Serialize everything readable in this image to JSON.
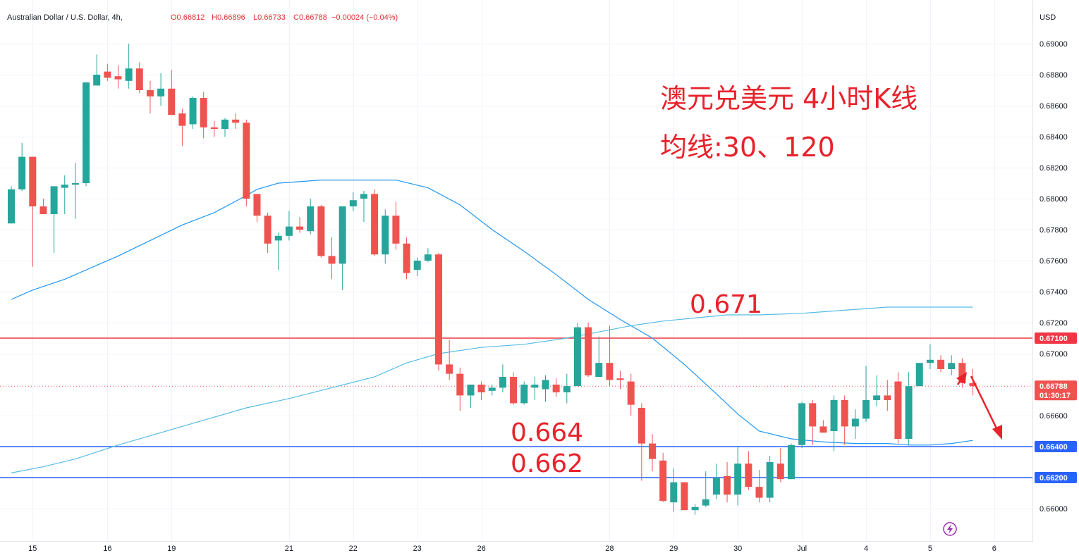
{
  "legend": {
    "symbol": "Australian Dollar / U.S. Dollar, 4h,",
    "open": "O0.66812",
    "high": "H0.66896",
    "low": "L0.66733",
    "close": "C0.66788",
    "change": "−0.00024 (−0.04%)"
  },
  "currency": "USD",
  "annotations": {
    "title_line1": "澳元兑美元 4小时K线",
    "title_line2": "均线:30、120",
    "level_671": "0.671",
    "level_664": "0.664",
    "level_662": "0.662"
  },
  "price_tags": {
    "resistance": "0.67100",
    "last_price": "0.66788",
    "countdown": "01:30:17",
    "support_1": "0.66400",
    "support_2": "0.66200"
  },
  "colors": {
    "up": "#26a69a",
    "down": "#ef5350",
    "ma30": "#2196f3",
    "ma120": "#56bce6",
    "resistance_line": "#f23645",
    "support_line": "#2962ff",
    "annotation": "#e8222b"
  },
  "chart_data": {
    "type": "candlestick",
    "symbol": "AUDUSD",
    "timeframe": "4h",
    "ylim": [
      0.6595,
      0.691
    ],
    "y_ticks": [
      "0.69000",
      "0.68800",
      "0.68600",
      "0.68400",
      "0.68200",
      "0.68000",
      "0.67800",
      "0.67600",
      "0.67400",
      "0.67200",
      "0.67000",
      "0.66800",
      "0.66600",
      "0.66400",
      "0.66200",
      "0.66000"
    ],
    "x_ticks": [
      {
        "label": "15",
        "bar": 2
      },
      {
        "label": "16",
        "bar": 9
      },
      {
        "label": "19",
        "bar": 15
      },
      {
        "label": "21",
        "bar": 26
      },
      {
        "label": "22",
        "bar": 32
      },
      {
        "label": "23",
        "bar": 38
      },
      {
        "label": "26",
        "bar": 44
      },
      {
        "label": "28",
        "bar": 56
      },
      {
        "label": "29",
        "bar": 62
      },
      {
        "label": "30",
        "bar": 68
      },
      {
        "label": "Jul",
        "bar": 74
      },
      {
        "label": "4",
        "bar": 80
      },
      {
        "label": "5",
        "bar": 86
      },
      {
        "label": "6",
        "bar": 92
      }
    ],
    "horizontal_lines": [
      {
        "value": 0.671,
        "label": "0.67100",
        "role": "resistance"
      },
      {
        "value": 0.664,
        "label": "0.66400",
        "role": "support"
      },
      {
        "value": 0.662,
        "label": "0.66200",
        "role": "support"
      }
    ],
    "candles": [
      {
        "o": 0.6784,
        "h": 0.6808,
        "l": 0.6784,
        "c": 0.6806
      },
      {
        "o": 0.6806,
        "h": 0.6836,
        "l": 0.6805,
        "c": 0.6827
      },
      {
        "o": 0.6827,
        "h": 0.6827,
        "l": 0.6756,
        "c": 0.6795
      },
      {
        "o": 0.6795,
        "h": 0.68,
        "l": 0.679,
        "c": 0.679
      },
      {
        "o": 0.679,
        "h": 0.6808,
        "l": 0.6765,
        "c": 0.6808
      },
      {
        "o": 0.6807,
        "h": 0.6815,
        "l": 0.679,
        "c": 0.6809
      },
      {
        "o": 0.6809,
        "h": 0.6823,
        "l": 0.6787,
        "c": 0.681
      },
      {
        "o": 0.681,
        "h": 0.6875,
        "l": 0.6808,
        "c": 0.6875
      },
      {
        "o": 0.6873,
        "h": 0.6893,
        "l": 0.6873,
        "c": 0.688
      },
      {
        "o": 0.6882,
        "h": 0.6887,
        "l": 0.6876,
        "c": 0.6878
      },
      {
        "o": 0.6879,
        "h": 0.6886,
        "l": 0.6871,
        "c": 0.6877
      },
      {
        "o": 0.6876,
        "h": 0.69,
        "l": 0.6871,
        "c": 0.6884
      },
      {
        "o": 0.6884,
        "h": 0.6888,
        "l": 0.6868,
        "c": 0.687
      },
      {
        "o": 0.687,
        "h": 0.6876,
        "l": 0.6855,
        "c": 0.6866
      },
      {
        "o": 0.6866,
        "h": 0.6881,
        "l": 0.686,
        "c": 0.6871
      },
      {
        "o": 0.6871,
        "h": 0.6883,
        "l": 0.6855,
        "c": 0.6854
      },
      {
        "o": 0.6855,
        "h": 0.6858,
        "l": 0.6834,
        "c": 0.6847
      },
      {
        "o": 0.6848,
        "h": 0.6866,
        "l": 0.6845,
        "c": 0.6865
      },
      {
        "o": 0.6865,
        "h": 0.6869,
        "l": 0.6839,
        "c": 0.6846
      },
      {
        "o": 0.6846,
        "h": 0.685,
        "l": 0.684,
        "c": 0.6845
      },
      {
        "o": 0.6845,
        "h": 0.6852,
        "l": 0.684,
        "c": 0.6851
      },
      {
        "o": 0.6851,
        "h": 0.6855,
        "l": 0.6845,
        "c": 0.6849
      },
      {
        "o": 0.6849,
        "h": 0.6851,
        "l": 0.6795,
        "c": 0.68
      },
      {
        "o": 0.6803,
        "h": 0.6803,
        "l": 0.6785,
        "c": 0.6789
      },
      {
        "o": 0.6789,
        "h": 0.6791,
        "l": 0.6765,
        "c": 0.6771
      },
      {
        "o": 0.6773,
        "h": 0.6778,
        "l": 0.6754,
        "c": 0.6776
      },
      {
        "o": 0.6776,
        "h": 0.6792,
        "l": 0.6773,
        "c": 0.6782
      },
      {
        "o": 0.6782,
        "h": 0.6788,
        "l": 0.6778,
        "c": 0.678
      },
      {
        "o": 0.6779,
        "h": 0.68,
        "l": 0.6777,
        "c": 0.6795
      },
      {
        "o": 0.6795,
        "h": 0.6796,
        "l": 0.6762,
        "c": 0.6763
      },
      {
        "o": 0.6763,
        "h": 0.6775,
        "l": 0.6748,
        "c": 0.6758
      },
      {
        "o": 0.6758,
        "h": 0.6795,
        "l": 0.6741,
        "c": 0.6795
      },
      {
        "o": 0.6795,
        "h": 0.6804,
        "l": 0.6792,
        "c": 0.6799
      },
      {
        "o": 0.68,
        "h": 0.6805,
        "l": 0.6785,
        "c": 0.6803
      },
      {
        "o": 0.6803,
        "h": 0.6806,
        "l": 0.6763,
        "c": 0.6764
      },
      {
        "o": 0.6764,
        "h": 0.6793,
        "l": 0.6758,
        "c": 0.6789
      },
      {
        "o": 0.6789,
        "h": 0.6798,
        "l": 0.6767,
        "c": 0.6771
      },
      {
        "o": 0.6771,
        "h": 0.6775,
        "l": 0.6748,
        "c": 0.6752
      },
      {
        "o": 0.6754,
        "h": 0.6762,
        "l": 0.675,
        "c": 0.676
      },
      {
        "o": 0.676,
        "h": 0.6768,
        "l": 0.6759,
        "c": 0.6764
      },
      {
        "o": 0.6764,
        "h": 0.6765,
        "l": 0.6689,
        "c": 0.6693
      },
      {
        "o": 0.6693,
        "h": 0.6709,
        "l": 0.6683,
        "c": 0.6687
      },
      {
        "o": 0.6687,
        "h": 0.6691,
        "l": 0.6663,
        "c": 0.6673
      },
      {
        "o": 0.6673,
        "h": 0.668,
        "l": 0.6665,
        "c": 0.668
      },
      {
        "o": 0.668,
        "h": 0.6682,
        "l": 0.667,
        "c": 0.6675
      },
      {
        "o": 0.6676,
        "h": 0.668,
        "l": 0.6673,
        "c": 0.6678
      },
      {
        "o": 0.6678,
        "h": 0.6693,
        "l": 0.6675,
        "c": 0.6685
      },
      {
        "o": 0.6685,
        "h": 0.6688,
        "l": 0.6667,
        "c": 0.6668
      },
      {
        "o": 0.6668,
        "h": 0.6682,
        "l": 0.6667,
        "c": 0.668
      },
      {
        "o": 0.6678,
        "h": 0.6685,
        "l": 0.667,
        "c": 0.668
      },
      {
        "o": 0.6677,
        "h": 0.6686,
        "l": 0.6669,
        "c": 0.6683
      },
      {
        "o": 0.668,
        "h": 0.6684,
        "l": 0.6672,
        "c": 0.6675
      },
      {
        "o": 0.6675,
        "h": 0.6687,
        "l": 0.6668,
        "c": 0.6679
      },
      {
        "o": 0.6679,
        "h": 0.672,
        "l": 0.6679,
        "c": 0.6717
      },
      {
        "o": 0.6717,
        "h": 0.672,
        "l": 0.6685,
        "c": 0.6686
      },
      {
        "o": 0.6685,
        "h": 0.6711,
        "l": 0.6685,
        "c": 0.6694
      },
      {
        "o": 0.6694,
        "h": 0.6718,
        "l": 0.6679,
        "c": 0.6683
      },
      {
        "o": 0.6684,
        "h": 0.6689,
        "l": 0.6677,
        "c": 0.6683
      },
      {
        "o": 0.6682,
        "h": 0.6687,
        "l": 0.666,
        "c": 0.6667
      },
      {
        "o": 0.6665,
        "h": 0.6668,
        "l": 0.6618,
        "c": 0.6642
      },
      {
        "o": 0.6642,
        "h": 0.6648,
        "l": 0.6624,
        "c": 0.6632
      },
      {
        "o": 0.6631,
        "h": 0.6636,
        "l": 0.6604,
        "c": 0.6605
      },
      {
        "o": 0.6604,
        "h": 0.6626,
        "l": 0.6598,
        "c": 0.6617
      },
      {
        "o": 0.6617,
        "h": 0.6617,
        "l": 0.6599,
        "c": 0.6599
      },
      {
        "o": 0.6599,
        "h": 0.6603,
        "l": 0.6596,
        "c": 0.6601
      },
      {
        "o": 0.6602,
        "h": 0.6624,
        "l": 0.6601,
        "c": 0.6606
      },
      {
        "o": 0.6609,
        "h": 0.6629,
        "l": 0.6606,
        "c": 0.662
      },
      {
        "o": 0.6621,
        "h": 0.663,
        "l": 0.6604,
        "c": 0.6609
      },
      {
        "o": 0.6609,
        "h": 0.664,
        "l": 0.6602,
        "c": 0.6629
      },
      {
        "o": 0.6629,
        "h": 0.6637,
        "l": 0.6612,
        "c": 0.6614
      },
      {
        "o": 0.6614,
        "h": 0.6625,
        "l": 0.6604,
        "c": 0.6607
      },
      {
        "o": 0.6607,
        "h": 0.6634,
        "l": 0.6604,
        "c": 0.663
      },
      {
        "o": 0.6629,
        "h": 0.6639,
        "l": 0.6617,
        "c": 0.6619
      },
      {
        "o": 0.6619,
        "h": 0.6642,
        "l": 0.6619,
        "c": 0.6641
      },
      {
        "o": 0.6641,
        "h": 0.6669,
        "l": 0.6639,
        "c": 0.6668
      },
      {
        "o": 0.6668,
        "h": 0.667,
        "l": 0.6641,
        "c": 0.6653
      },
      {
        "o": 0.6653,
        "h": 0.6657,
        "l": 0.6649,
        "c": 0.6649
      },
      {
        "o": 0.665,
        "h": 0.6673,
        "l": 0.6637,
        "c": 0.667
      },
      {
        "o": 0.667,
        "h": 0.6673,
        "l": 0.6641,
        "c": 0.6653
      },
      {
        "o": 0.6653,
        "h": 0.6664,
        "l": 0.6645,
        "c": 0.6658
      },
      {
        "o": 0.6658,
        "h": 0.6692,
        "l": 0.6656,
        "c": 0.667
      },
      {
        "o": 0.667,
        "h": 0.6686,
        "l": 0.6666,
        "c": 0.6673
      },
      {
        "o": 0.6673,
        "h": 0.6683,
        "l": 0.6663,
        "c": 0.667
      },
      {
        "o": 0.6682,
        "h": 0.6688,
        "l": 0.6642,
        "c": 0.6645
      },
      {
        "o": 0.6645,
        "h": 0.6688,
        "l": 0.6641,
        "c": 0.6679
      },
      {
        "o": 0.6679,
        "h": 0.6694,
        "l": 0.6679,
        "c": 0.6694
      },
      {
        "o": 0.6694,
        "h": 0.6706,
        "l": 0.669,
        "c": 0.6696
      },
      {
        "o": 0.6696,
        "h": 0.6699,
        "l": 0.6688,
        "c": 0.669
      },
      {
        "o": 0.669,
        "h": 0.6699,
        "l": 0.6686,
        "c": 0.6694
      },
      {
        "o": 0.6694,
        "h": 0.6697,
        "l": 0.6678,
        "c": 0.6681
      },
      {
        "o": 0.6681,
        "h": 0.669,
        "l": 0.6673,
        "c": 0.6679
      }
    ],
    "moving_averages": [
      {
        "name": "MA30",
        "type": "SMA",
        "period": 30,
        "points": [
          [
            0,
            0.6735
          ],
          [
            2,
            0.6741
          ],
          [
            5,
            0.6748
          ],
          [
            8,
            0.6757
          ],
          [
            10,
            0.6763
          ],
          [
            13,
            0.6773
          ],
          [
            16,
            0.6783
          ],
          [
            19,
            0.6791
          ],
          [
            22,
            0.6802
          ],
          [
            23,
            0.6806
          ],
          [
            25,
            0.681
          ],
          [
            29,
            0.6812
          ],
          [
            32,
            0.6812
          ],
          [
            36,
            0.6812
          ],
          [
            39,
            0.6807
          ],
          [
            42,
            0.6796
          ],
          [
            45,
            0.678
          ],
          [
            48,
            0.6766
          ],
          [
            51,
            0.6751
          ],
          [
            54,
            0.6735
          ],
          [
            57,
            0.6722
          ],
          [
            60,
            0.671
          ],
          [
            63,
            0.6693
          ],
          [
            66,
            0.6674
          ],
          [
            68,
            0.6661
          ],
          [
            70,
            0.665
          ],
          [
            73,
            0.6645
          ],
          [
            76,
            0.6643
          ],
          [
            79,
            0.6642
          ],
          [
            82,
            0.6642
          ],
          [
            84,
            0.6641
          ],
          [
            86,
            0.6641
          ],
          [
            88,
            0.6642
          ],
          [
            90,
            0.6644
          ]
        ]
      },
      {
        "name": "MA120",
        "type": "SMA",
        "period": 120,
        "points": [
          [
            0,
            0.6623
          ],
          [
            3,
            0.6627
          ],
          [
            6,
            0.6632
          ],
          [
            10,
            0.6641
          ],
          [
            14,
            0.6649
          ],
          [
            18,
            0.6657
          ],
          [
            22,
            0.6665
          ],
          [
            26,
            0.6671
          ],
          [
            30,
            0.6678
          ],
          [
            34,
            0.6685
          ],
          [
            37,
            0.6694
          ],
          [
            40,
            0.67
          ],
          [
            44,
            0.6704
          ],
          [
            48,
            0.6706
          ],
          [
            52,
            0.671
          ],
          [
            55,
            0.6714
          ],
          [
            58,
            0.6718
          ],
          [
            61,
            0.6721
          ],
          [
            64,
            0.6723
          ],
          [
            67,
            0.6725
          ],
          [
            70,
            0.6725
          ],
          [
            74,
            0.6726
          ],
          [
            78,
            0.6728
          ],
          [
            82,
            0.673
          ],
          [
            86,
            0.673
          ],
          [
            90,
            0.673
          ]
        ]
      }
    ]
  }
}
